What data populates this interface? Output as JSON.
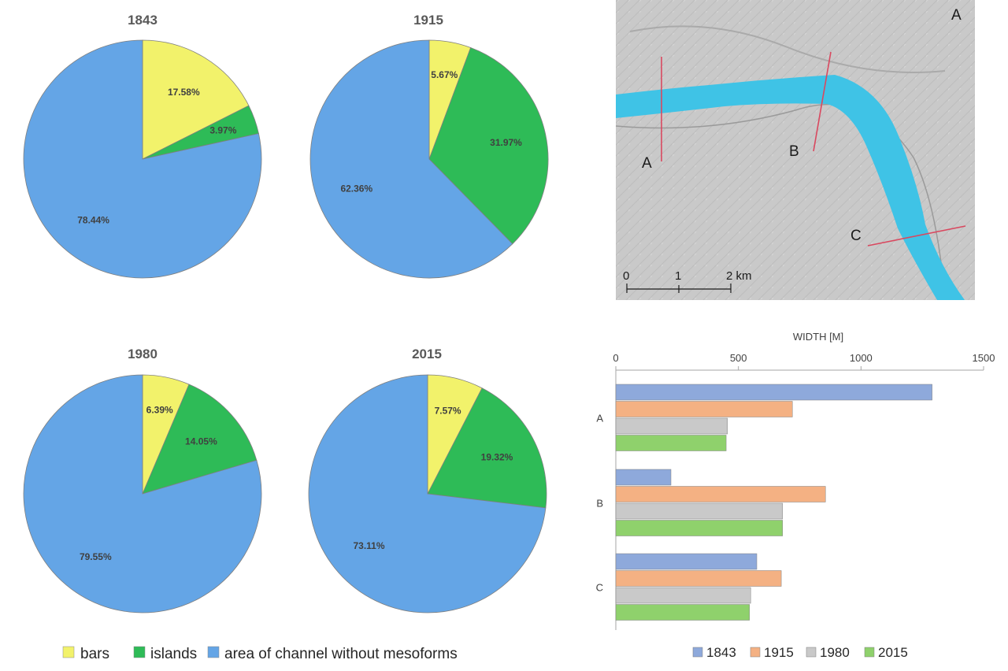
{
  "colors": {
    "bars": "#F2F26B",
    "islands": "#2EBB57",
    "channel": "#64A5E6",
    "series_1843": "#8EA9DB",
    "series_1915": "#F4B183",
    "series_1980": "#C9C9C9",
    "series_2015": "#8FD16C",
    "river": "#3FC3E6",
    "section_line": "#D9485F"
  },
  "pie_legend": {
    "items": [
      {
        "label": "bars",
        "color_key": "bars"
      },
      {
        "label": "islands",
        "color_key": "islands"
      },
      {
        "label": "area of channel without mesoforms",
        "color_key": "channel"
      }
    ]
  },
  "map": {
    "north_arrow": "A",
    "sections": [
      "A",
      "B",
      "C"
    ],
    "scale_labels": [
      "0",
      "1",
      "2 km"
    ]
  },
  "chart_data": [
    {
      "type": "pie",
      "title": "1843",
      "categories": [
        "bars",
        "islands",
        "area of channel without mesoforms"
      ],
      "values": [
        17.58,
        3.97,
        78.44
      ],
      "labels": [
        "17.58%",
        "3.97%",
        "78.44%"
      ]
    },
    {
      "type": "pie",
      "title": "1915",
      "categories": [
        "bars",
        "islands",
        "area of channel without mesoforms"
      ],
      "values": [
        5.67,
        31.97,
        62.36
      ],
      "labels": [
        "5.67%",
        "31.97%",
        "62.36%"
      ]
    },
    {
      "type": "pie",
      "title": "1980",
      "categories": [
        "bars",
        "islands",
        "area of channel without mesoforms"
      ],
      "values": [
        6.39,
        14.05,
        79.55
      ],
      "labels": [
        "6.39%",
        "14.05%",
        "79.55%"
      ]
    },
    {
      "type": "pie",
      "title": "2015",
      "categories": [
        "bars",
        "islands",
        "area of channel without mesoforms"
      ],
      "values": [
        7.57,
        19.32,
        73.11
      ],
      "labels": [
        "7.57%",
        "19.32%",
        "73.11%"
      ]
    },
    {
      "type": "bar",
      "orientation": "horizontal",
      "title": "WIDTH [M]",
      "categories": [
        "A",
        "B",
        "C"
      ],
      "xlim": [
        0,
        1500
      ],
      "ticks": [
        0,
        500,
        1000,
        1500
      ],
      "tick_labels": [
        "0",
        "500",
        "1000",
        "1500"
      ],
      "series": [
        {
          "name": "1843",
          "values": [
            1290,
            225,
            575
          ]
        },
        {
          "name": "1915",
          "values": [
            720,
            855,
            675
          ]
        },
        {
          "name": "1980",
          "values": [
            455,
            680,
            550
          ]
        },
        {
          "name": "2015",
          "values": [
            450,
            680,
            545
          ]
        }
      ]
    }
  ]
}
